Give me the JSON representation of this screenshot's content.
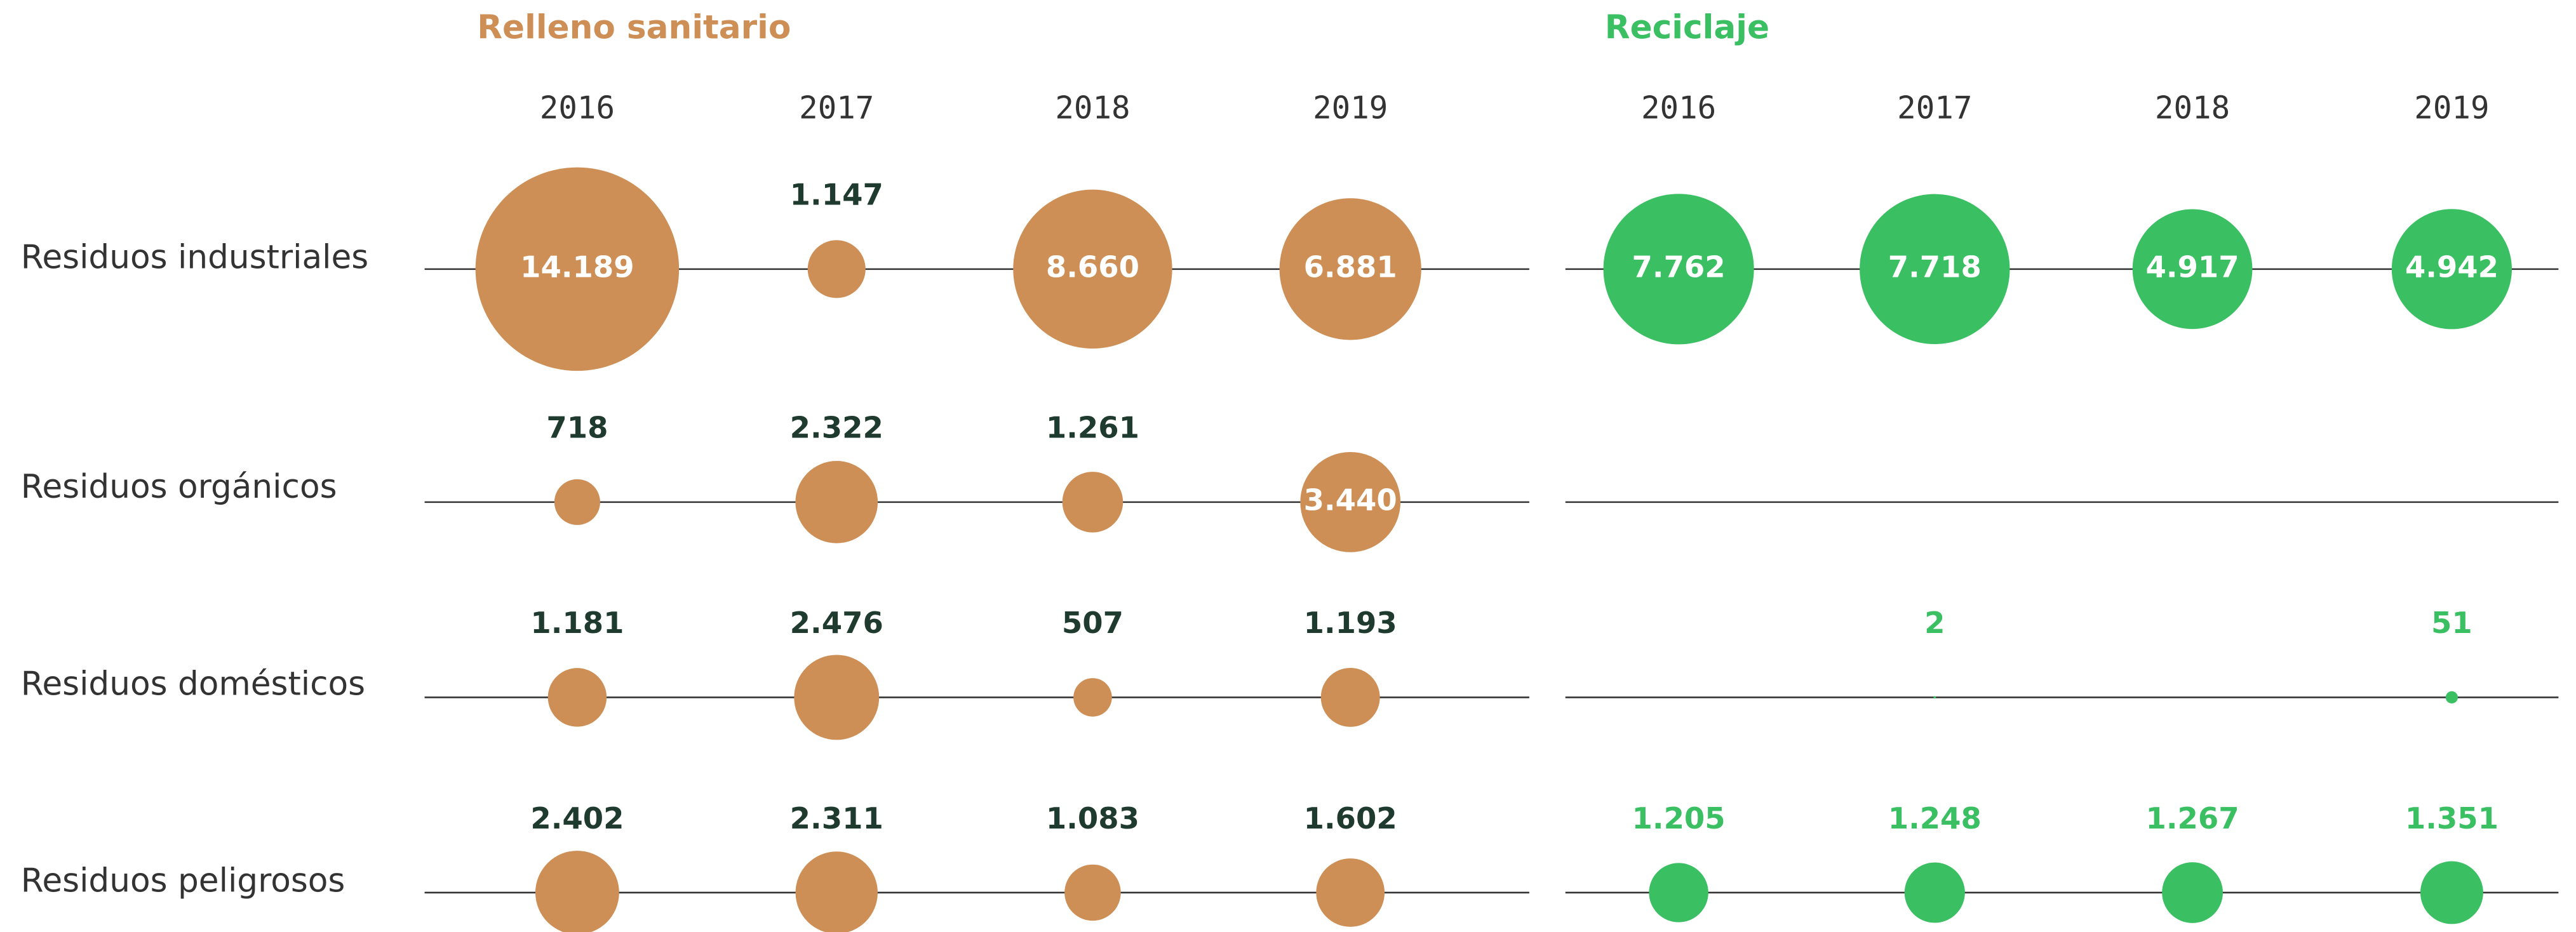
{
  "chart_data": {
    "type": "bubble",
    "categories": [
      "Residuos industriales",
      "Residuos orgánicos",
      "Residuos domésticos",
      "Residuos peligrosos"
    ],
    "panels": [
      {
        "title": "Relleno sanitario",
        "color": "#cd8f55",
        "label_color": "#1f3a2e",
        "x": [
          2016,
          2017,
          2018,
          2019
        ],
        "values": [
          [
            14189,
            1147,
            8660,
            6881
          ],
          [
            718,
            2322,
            1261,
            3440
          ],
          [
            1181,
            2476,
            507,
            1193
          ],
          [
            2402,
            2311,
            1083,
            1602
          ]
        ],
        "value_labels": [
          [
            "14.189",
            "1.147",
            "8.660",
            "6.881"
          ],
          [
            "718",
            "2.322",
            "1.261",
            "3.440"
          ],
          [
            "1.181",
            "2.476",
            "507",
            "1.193"
          ],
          [
            "2.402",
            "2.311",
            "1.083",
            "1.602"
          ]
        ]
      },
      {
        "title": "Reciclaje",
        "color": "#3abf62",
        "label_color": "#3abf62",
        "x": [
          2016,
          2017,
          2018,
          2019
        ],
        "values": [
          [
            7762,
            7718,
            4917,
            4942
          ],
          [
            null,
            null,
            null,
            null
          ],
          [
            null,
            2,
            null,
            51
          ],
          [
            1205,
            1248,
            1267,
            1351
          ]
        ],
        "value_labels": [
          [
            "7.762",
            "7.718",
            "4.917",
            "4.942"
          ],
          [
            null,
            null,
            null,
            null
          ],
          [
            null,
            "2",
            null,
            "51"
          ],
          [
            "1.205",
            "1.248",
            "1.267",
            "1.351"
          ]
        ]
      }
    ]
  }
}
